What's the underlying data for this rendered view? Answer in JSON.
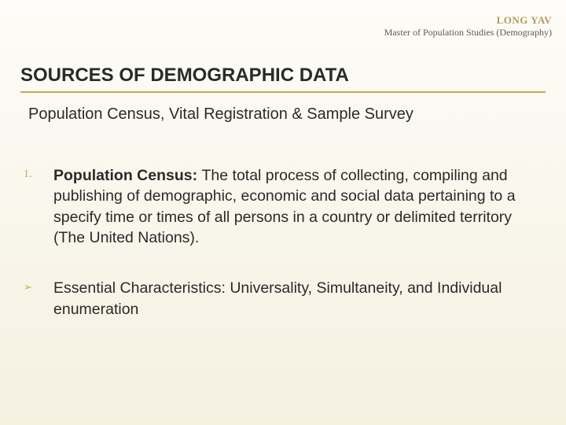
{
  "header": {
    "author": "LONG YAV",
    "author_title": "Master of Population Studies (Demography)"
  },
  "slide": {
    "title": "SOURCES OF DEMOGRAPHIC DATA",
    "subtitle": "Population Census, Vital Registration & Sample Survey"
  },
  "items": [
    {
      "marker": "1.",
      "bold_lead": "Population Census: ",
      "text": "The total process of collecting, compiling and publishing of demographic, economic and social data pertaining to a specify time or times of all persons in a country or delimited territory (The United Nations)."
    },
    {
      "marker": "➢",
      "bold_lead": "",
      "text": "Essential Characteristics: Universality, Simultaneity, and Individual enumeration"
    }
  ],
  "colors": {
    "accent": "#c9a94f",
    "text": "#2a2a2a",
    "author_gold": "#b89a5a"
  }
}
